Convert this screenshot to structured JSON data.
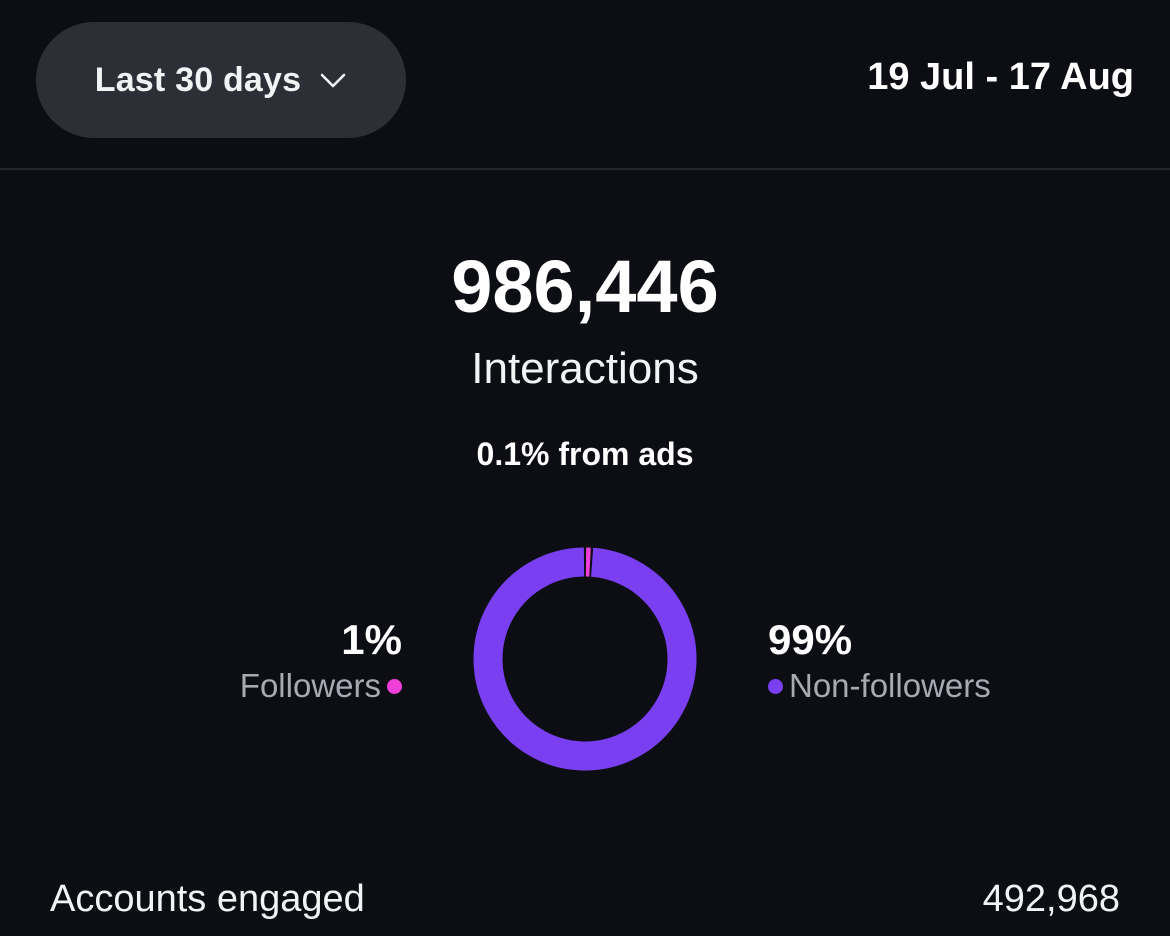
{
  "header": {
    "range_label": "Last 30 days",
    "range_icon": "chevron-down-icon",
    "date_range": "19 Jul - 17 Aug"
  },
  "summary": {
    "total": "986,446",
    "label": "Interactions",
    "ads_note": "0.1% from ads"
  },
  "breakdown": {
    "followers": {
      "percent": "1%",
      "label": "Followers",
      "color": "#f03fd8"
    },
    "non_followers": {
      "percent": "99%",
      "label": "Non-followers",
      "color": "#7b3ff2"
    }
  },
  "chart_data": {
    "type": "pie",
    "categories": [
      "Followers",
      "Non-followers"
    ],
    "values": [
      1,
      99
    ],
    "colors": [
      "#f03fd8",
      "#7b3ff2"
    ],
    "donut": true
  },
  "accounts": {
    "label": "Accounts engaged",
    "value": "492,968"
  }
}
